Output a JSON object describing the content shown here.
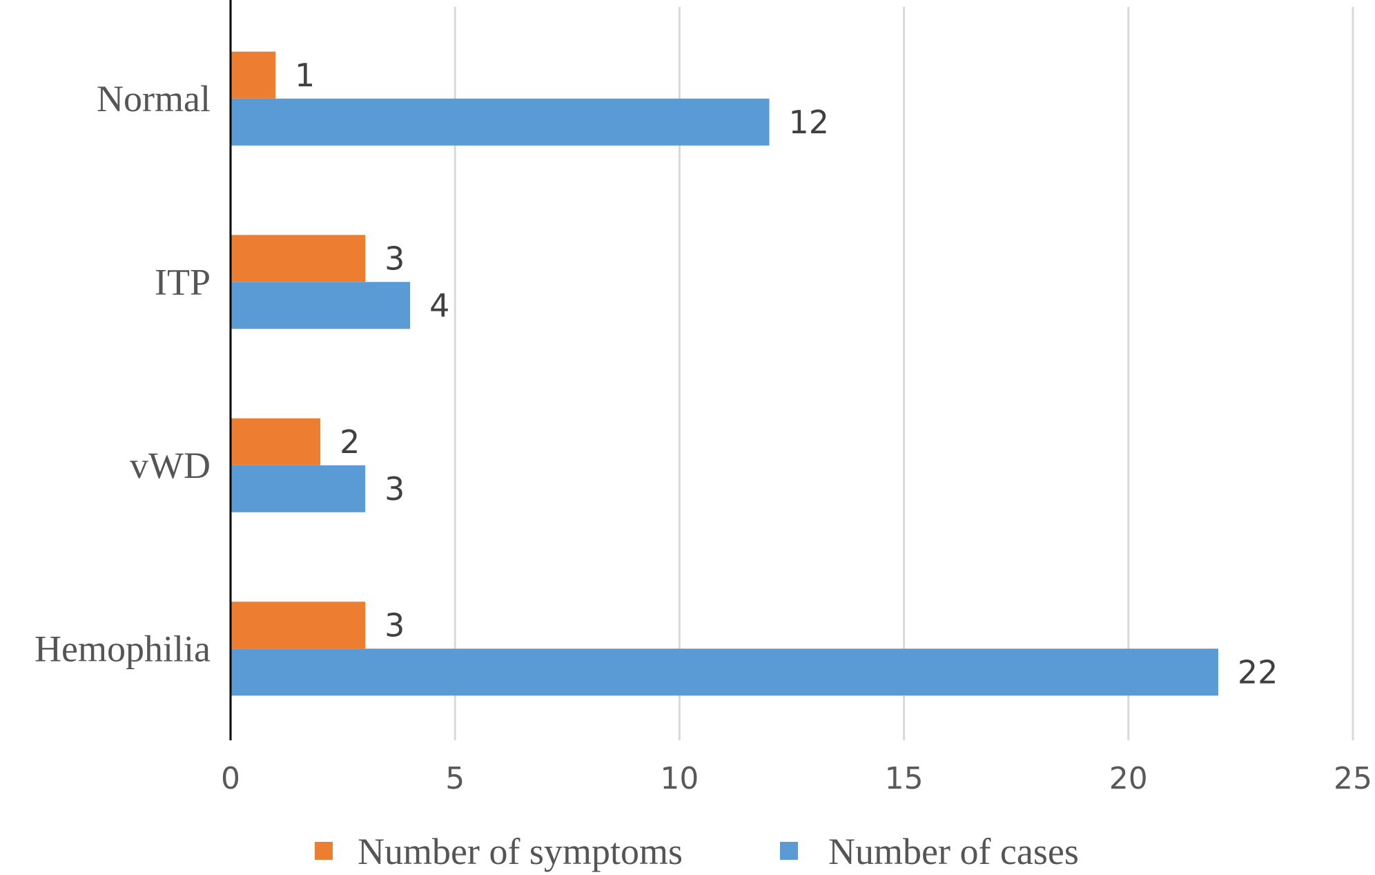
{
  "chart_data": {
    "type": "bar",
    "orientation": "horizontal",
    "categories": [
      "Normal",
      "ITP",
      "vWD",
      "Hemophilia"
    ],
    "series": [
      {
        "name": "Number of symptoms",
        "values": [
          1,
          3,
          2,
          3
        ],
        "color": "#ED7D31"
      },
      {
        "name": "Number of cases",
        "values": [
          12,
          4,
          3,
          22
        ],
        "color": "#5B9BD5"
      }
    ],
    "xlim": [
      0,
      25
    ],
    "xticks": [
      "0",
      "5",
      "10",
      "15",
      "20",
      "25"
    ],
    "grid": "vertical",
    "legend": "bottom",
    "data_labels": true,
    "title": "",
    "xlabel": "",
    "ylabel": ""
  }
}
